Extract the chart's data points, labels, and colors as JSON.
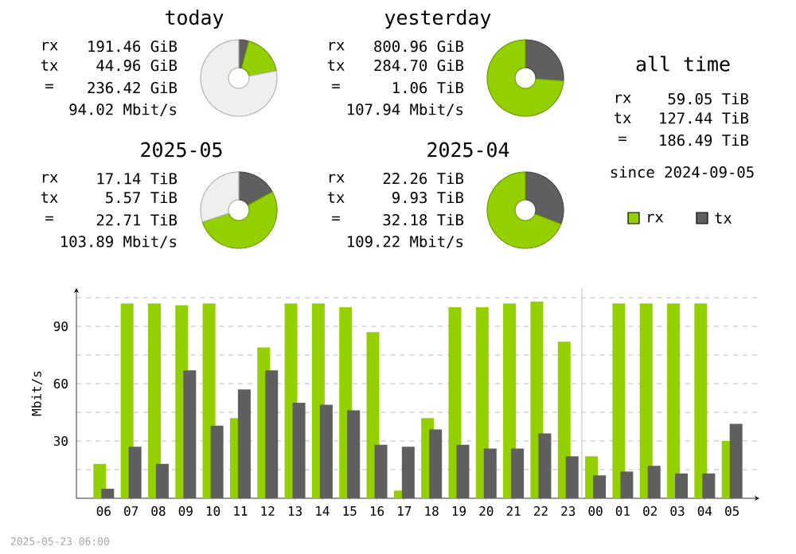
{
  "chart_data": [
    {
      "type": "donut",
      "title": "today",
      "categories": [
        null,
        null,
        null
      ],
      "values": [
        4.2,
        17.8,
        78
      ],
      "colors": [
        "#5f5f5f",
        "#94cf00",
        "#efefef"
      ],
      "annotations": [
        "rx",
        "191.46 GiB",
        "tx",
        "44.96 GiB",
        "=",
        "236.42 GiB",
        "94.02 Mbit/s"
      ]
    },
    {
      "type": "donut",
      "title": "yesterday",
      "categories": [
        null,
        null
      ],
      "values": [
        26.2,
        73.8
      ],
      "colors": [
        "#5f5f5f",
        "#94cf00"
      ],
      "annotations": [
        "rx",
        "800.96 GiB",
        "tx",
        "284.70 GiB",
        "=",
        "1.06 TiB",
        "107.94 Mbit/s"
      ]
    },
    {
      "type": "other",
      "title": "all time",
      "annotations": [
        "rx",
        "59.05 TiB",
        "tx",
        "127.44 TiB",
        "=",
        "186.49 TiB",
        "since 2024-09-05"
      ]
    },
    {
      "type": "donut",
      "title": "2025-05",
      "categories": [
        null,
        null,
        null
      ],
      "values": [
        17,
        53,
        30
      ],
      "colors": [
        "#5f5f5f",
        "#94cf00",
        "#efefef"
      ],
      "annotations": [
        "rx",
        "17.14 TiB",
        "tx",
        "5.57 TiB",
        "=",
        "22.71 TiB",
        "103.89 Mbit/s"
      ]
    },
    {
      "type": "donut",
      "title": "2025-04",
      "categories": [
        null,
        null
      ],
      "values": [
        30.9,
        69.1
      ],
      "colors": [
        "#5f5f5f",
        "#94cf00"
      ],
      "annotations": [
        "rx",
        "22.26 TiB",
        "tx",
        "9.93 TiB",
        "=",
        "32.18 TiB",
        "109.22 Mbit/s"
      ]
    },
    {
      "type": "bar",
      "ylabel": "Mbit/s",
      "categories": [
        "06",
        "07",
        "08",
        "09",
        "10",
        "11",
        "12",
        "13",
        "14",
        "15",
        "16",
        "17",
        "18",
        "19",
        "20",
        "21",
        "22",
        "23",
        "00",
        "01",
        "02",
        "03",
        "04",
        "05"
      ],
      "series": [
        {
          "name": "rx",
          "color": "#94cf00",
          "values": [
            18,
            102,
            102,
            101,
            102,
            42,
            79,
            102,
            102,
            100,
            87,
            4,
            42,
            100,
            100,
            102,
            103,
            82,
            22,
            102,
            102,
            102,
            102,
            30
          ]
        },
        {
          "name": "tx",
          "color": "#5f5f5f",
          "values": [
            5,
            27,
            18,
            67,
            38,
            57,
            67,
            50,
            49,
            46,
            28,
            27,
            36,
            28,
            26,
            26,
            34,
            22,
            12,
            14,
            17,
            13,
            13,
            39
          ]
        }
      ],
      "ylim": [
        0,
        110
      ],
      "yticks": [
        {
          "value": 15,
          "label": null
        },
        30,
        {
          "value": 45,
          "label": null
        },
        60,
        {
          "value": 75,
          "label": null
        },
        90,
        {
          "value": 105,
          "label": null
        }
      ],
      "grid": "y",
      "legend": "top right",
      "ref_lines": [
        {
          "axis": "x",
          "value": "00",
          "color": "#d8d8d8"
        }
      ],
      "annotations": [
        "2025-05-23 06:00"
      ]
    }
  ]
}
